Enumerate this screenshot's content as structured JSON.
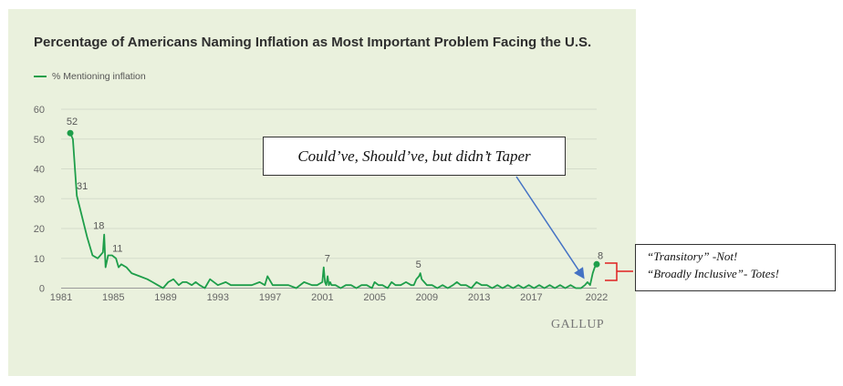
{
  "chart_data": {
    "type": "line",
    "title": "Percentage of Americans Naming Inflation as Most Important Problem Facing the U.S.",
    "xlabel": "",
    "ylabel": "",
    "xlim": [
      1981,
      2022
    ],
    "ylim": [
      0,
      60
    ],
    "y_ticks": [
      "0",
      "10",
      "20",
      "30",
      "40",
      "50",
      "60"
    ],
    "x_ticks": [
      "1981",
      "1985",
      "1989",
      "1993",
      "1997",
      "2001",
      "2005",
      "2009",
      "2013",
      "2017",
      "2022"
    ],
    "grid": true,
    "legend_position": "top-left",
    "colors": {
      "series": "#1e9e4a",
      "arrow": "#4472c4",
      "bracket": "#e02020"
    },
    "series": [
      {
        "name": "% Mentioning inflation",
        "x": [
          1981.7,
          1981.9,
          1982.2,
          1982.6,
          1983.0,
          1983.4,
          1983.8,
          1984.0,
          1984.2,
          1984.3,
          1984.4,
          1984.6,
          1984.9,
          1985.2,
          1985.4,
          1985.6,
          1986.0,
          1986.4,
          1987.0,
          1987.6,
          1988.0,
          1988.4,
          1988.8,
          1989.2,
          1989.6,
          1990.0,
          1990.3,
          1990.6,
          1991.0,
          1991.3,
          1991.6,
          1992.0,
          1992.4,
          1993.0,
          1993.6,
          1994.0,
          1994.6,
          1995.0,
          1995.6,
          1996.2,
          1996.6,
          1996.8,
          1997.2,
          1997.8,
          1998.4,
          1999.0,
          1999.6,
          2000.2,
          2000.6,
          2001.0,
          2001.1,
          2001.2,
          2001.3,
          2001.4,
          2001.5,
          2001.6,
          2001.7,
          2001.8,
          2002.0,
          2002.4,
          2002.8,
          2003.2,
          2003.6,
          2004.0,
          2004.4,
          2004.8,
          2005.0,
          2005.3,
          2005.6,
          2006.0,
          2006.3,
          2006.6,
          2007.0,
          2007.4,
          2007.8,
          2008.0,
          2008.2,
          2008.4,
          2008.5,
          2008.6,
          2008.8,
          2009.0,
          2009.4,
          2009.8,
          2010.2,
          2010.6,
          2011.0,
          2011.3,
          2011.6,
          2012.0,
          2012.4,
          2012.8,
          2013.2,
          2013.6,
          2014.0,
          2014.4,
          2014.8,
          2015.2,
          2015.6,
          2016.0,
          2016.4,
          2016.8,
          2017.2,
          2017.6,
          2018.0,
          2018.4,
          2018.8,
          2019.2,
          2019.6,
          2020.0,
          2020.4,
          2020.8,
          2021.1,
          2021.3,
          2021.5,
          2021.7,
          2021.85,
          2022.0
        ],
        "values": [
          52,
          50,
          31,
          24,
          17,
          11,
          10,
          11,
          12,
          18,
          7,
          11,
          11,
          10,
          7,
          8,
          7,
          5,
          4,
          3,
          2,
          1,
          0,
          2,
          3,
          1,
          2,
          2,
          1,
          2,
          1,
          0,
          3,
          1,
          2,
          1,
          1,
          1,
          1,
          2,
          1,
          4,
          1,
          1,
          1,
          0,
          2,
          1,
          1,
          2,
          7,
          2,
          1,
          4,
          1,
          2,
          1,
          1,
          1,
          0,
          1,
          1,
          0,
          1,
          1,
          0,
          2,
          1,
          1,
          0,
          2,
          1,
          1,
          2,
          1,
          1,
          3,
          4,
          5,
          3,
          2,
          1,
          1,
          0,
          1,
          0,
          1,
          2,
          1,
          1,
          0,
          2,
          1,
          1,
          0,
          1,
          0,
          1,
          0,
          1,
          0,
          1,
          0,
          1,
          0,
          1,
          0,
          1,
          0,
          1,
          0,
          0,
          1,
          2,
          1,
          5,
          7,
          8
        ]
      }
    ],
    "data_labels": [
      {
        "year": 1981.7,
        "value": 52,
        "text": "52"
      },
      {
        "year": 1982.2,
        "value": 31,
        "text": "31"
      },
      {
        "year": 1984.3,
        "value": 18,
        "text": "18"
      },
      {
        "year": 1984.9,
        "value": 11,
        "text": "11"
      },
      {
        "year": 2001.1,
        "value": 7,
        "text": "7"
      },
      {
        "year": 2008.5,
        "value": 5,
        "text": "5"
      },
      {
        "year": 2022.0,
        "value": 8,
        "text": "8"
      }
    ]
  },
  "source_logo": "GALLUP",
  "annotations": {
    "taper": "Could’ve, Should’ve, but didn’t Taper",
    "right_line1": "“Transitory” -Not!",
    "right_line2": "“Broadly Inclusive”- Totes!"
  }
}
